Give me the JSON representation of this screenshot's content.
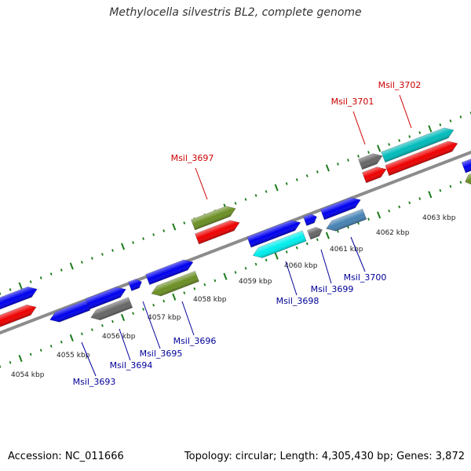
{
  "title": "Methylocella silvestris BL2, complete genome",
  "footer": {
    "accession": "Accession: NC_011666",
    "summary": "Topology: circular; Length: 4,305,430 bp; Genes: 3,872"
  },
  "colors": {
    "backbone": "#8c8c8c",
    "tick": "#1a7a1a",
    "forward_label": "#cc0000",
    "reverse_label": "#000099"
  },
  "tick_labels": [
    "4054 kbp",
    "4055 kbp",
    "4056 kbp",
    "4057 kbp",
    "4058 kbp",
    "4059 kbp",
    "4060 kbp",
    "4061 kbp",
    "4062 kbp",
    "4063 kbp"
  ],
  "genes": [
    {
      "label": "",
      "strand": "+",
      "color": "#0000ee"
    },
    {
      "label": "",
      "strand": "+",
      "color": "#ee0000"
    },
    {
      "label": "Msil_3693",
      "strand": "-",
      "color": "#0000ee"
    },
    {
      "label": "",
      "strand": "+",
      "color": "#0000ee"
    },
    {
      "label": "Msil_3694",
      "strand": "-",
      "color": "#666666"
    },
    {
      "label": "",
      "strand": "+",
      "color": "#0000ee"
    },
    {
      "label": "",
      "strand": "+",
      "color": "#0000ee"
    },
    {
      "label": "Msil_3695",
      "strand": "-",
      "color": "#6b8e23"
    },
    {
      "label": "Msil_3697",
      "strand": "+",
      "color": "#6b8e23"
    },
    {
      "label": "",
      "strand": "+",
      "color": "#ee0000"
    },
    {
      "label": "",
      "strand": "+",
      "color": "#0000ee"
    },
    {
      "label": "Msil_3698",
      "strand": "-",
      "color": "#00eeee"
    },
    {
      "label": "",
      "strand": "+",
      "color": "#0000ee"
    },
    {
      "label": "",
      "strand": "+",
      "color": "#666666"
    },
    {
      "label": "",
      "strand": "+",
      "color": "#0000ee"
    },
    {
      "label": "Msil_3700",
      "strand": "-",
      "color": "#4682b4"
    },
    {
      "label": "Msil_3701",
      "strand": "+",
      "color": "#666666"
    },
    {
      "label": "",
      "strand": "+",
      "color": "#ee0000"
    },
    {
      "label": "Msil_3702",
      "strand": "+",
      "color": "#00bbbb"
    },
    {
      "label": "",
      "strand": "+",
      "color": "#ee0000"
    },
    {
      "label": "",
      "strand": "+",
      "color": "#0000ee"
    },
    {
      "label": "",
      "strand": "-",
      "color": "#6b8e23"
    }
  ],
  "extra_labels": [
    {
      "label": "Msil_3696",
      "strand": "-"
    },
    {
      "label": "Msil_3699",
      "strand": "-"
    }
  ]
}
